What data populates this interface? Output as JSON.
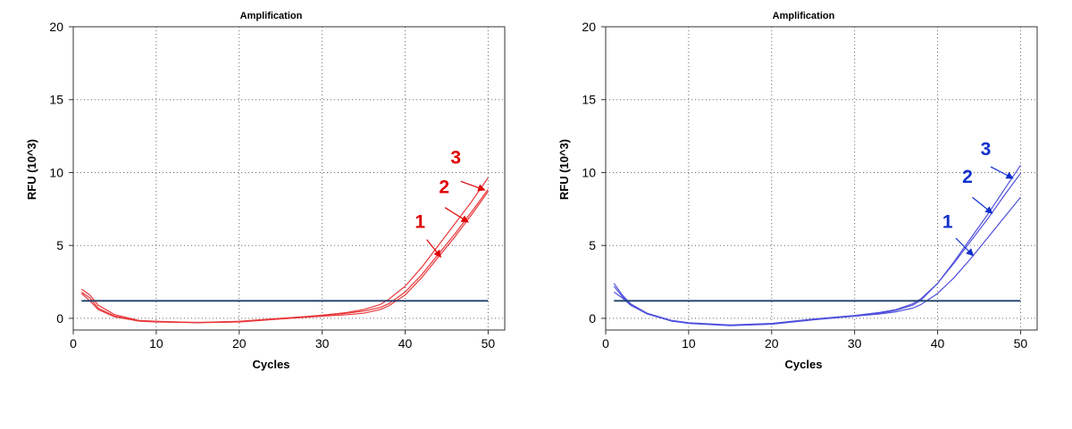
{
  "chart_data": [
    {
      "type": "line",
      "title": "Amplification",
      "xlabel": "Cycles",
      "ylabel": "RFU (10^3)",
      "xlim": [
        0,
        52
      ],
      "ylim": [
        -0.8,
        20
      ],
      "xticks": [
        0,
        10,
        20,
        30,
        40,
        50
      ],
      "yticks": [
        0,
        5,
        10,
        15,
        20
      ],
      "grid": true,
      "threshold": 1.2,
      "threshold_color": "#1f3f6b",
      "line_color": "#e8383b",
      "label_color": "#e00000",
      "series": [
        {
          "x": [
            1,
            2,
            3,
            5,
            8,
            10,
            15,
            20,
            25,
            30,
            33,
            35,
            37,
            38,
            40,
            42,
            44,
            46,
            48,
            50
          ],
          "values": [
            1.7,
            1.2,
            0.6,
            0.1,
            -0.2,
            -0.25,
            -0.3,
            -0.25,
            -0.05,
            0.15,
            0.25,
            0.35,
            0.6,
            0.85,
            1.6,
            2.8,
            4.2,
            5.6,
            7.1,
            8.7
          ]
        },
        {
          "x": [
            1,
            2,
            3,
            5,
            8,
            10,
            15,
            20,
            25,
            30,
            33,
            35,
            37,
            38,
            40,
            42,
            44,
            46,
            48,
            50
          ],
          "values": [
            2.0,
            1.6,
            0.9,
            0.25,
            -0.15,
            -0.2,
            -0.3,
            -0.2,
            0.0,
            0.2,
            0.35,
            0.5,
            0.75,
            1.0,
            1.8,
            3.0,
            4.4,
            5.8,
            7.3,
            8.85
          ]
        },
        {
          "x": [
            1,
            2,
            3,
            5,
            8,
            10,
            15,
            20,
            25,
            30,
            33,
            35,
            37,
            38,
            40,
            42,
            44,
            46,
            48,
            50
          ],
          "values": [
            1.8,
            1.4,
            0.7,
            0.15,
            -0.18,
            -0.22,
            -0.28,
            -0.22,
            -0.02,
            0.22,
            0.4,
            0.6,
            0.95,
            1.3,
            2.2,
            3.5,
            5.0,
            6.5,
            8.0,
            9.65
          ]
        }
      ],
      "annotations": [
        {
          "text": "1",
          "x": 41.8,
          "y": 6.2,
          "arrow_from": [
            42.6,
            5.4
          ],
          "arrow_to": [
            44.3,
            4.2
          ]
        },
        {
          "text": "2",
          "x": 44.7,
          "y": 8.6,
          "arrow_from": [
            44.8,
            7.6
          ],
          "arrow_to": [
            47.6,
            6.6
          ]
        },
        {
          "text": "3",
          "x": 46.1,
          "y": 10.6,
          "arrow_from": [
            46.7,
            9.4
          ],
          "arrow_to": [
            49.6,
            8.8
          ]
        }
      ]
    },
    {
      "type": "line",
      "title": "Amplification",
      "xlabel": "Cycles",
      "ylabel": "RFU (10^3)",
      "xlim": [
        0,
        52
      ],
      "ylim": [
        -0.8,
        20
      ],
      "xticks": [
        0,
        10,
        20,
        30,
        40,
        50
      ],
      "yticks": [
        0,
        5,
        10,
        15,
        20
      ],
      "grid": true,
      "threshold": 1.2,
      "threshold_color": "#1f3f6b",
      "line_color": "#5050dd",
      "label_color": "#1030cc",
      "series": [
        {
          "x": [
            1,
            2,
            3,
            5,
            8,
            10,
            15,
            20,
            25,
            30,
            33,
            35,
            37,
            38,
            40,
            42,
            44,
            46,
            48,
            50
          ],
          "values": [
            1.8,
            1.4,
            0.9,
            0.3,
            -0.2,
            -0.35,
            -0.5,
            -0.4,
            -0.1,
            0.15,
            0.3,
            0.45,
            0.7,
            0.95,
            1.7,
            2.8,
            4.1,
            5.5,
            6.9,
            8.3
          ]
        },
        {
          "x": [
            1,
            2,
            3,
            5,
            8,
            10,
            15,
            20,
            25,
            30,
            33,
            35,
            37,
            38,
            40,
            42,
            44,
            46,
            48,
            50
          ],
          "values": [
            2.4,
            1.6,
            1.0,
            0.35,
            -0.15,
            -0.3,
            -0.45,
            -0.35,
            -0.05,
            0.2,
            0.4,
            0.6,
            1.0,
            1.35,
            2.4,
            3.8,
            5.3,
            6.8,
            8.4,
            9.95
          ]
        },
        {
          "x": [
            1,
            2,
            3,
            5,
            8,
            10,
            15,
            20,
            25,
            30,
            33,
            35,
            37,
            38,
            40,
            42,
            44,
            46,
            48,
            50
          ],
          "values": [
            2.2,
            1.5,
            0.95,
            0.32,
            -0.18,
            -0.32,
            -0.48,
            -0.38,
            -0.08,
            0.18,
            0.35,
            0.55,
            0.9,
            1.25,
            2.4,
            3.9,
            5.5,
            7.1,
            8.8,
            10.5
          ]
        }
      ],
      "annotations": [
        {
          "text": "1",
          "x": 41.2,
          "y": 6.2,
          "arrow_from": [
            42.2,
            5.5
          ],
          "arrow_to": [
            44.3,
            4.3
          ]
        },
        {
          "text": "2",
          "x": 43.6,
          "y": 9.3,
          "arrow_from": [
            44.2,
            8.3
          ],
          "arrow_to": [
            46.6,
            7.2
          ]
        },
        {
          "text": "3",
          "x": 45.8,
          "y": 11.2,
          "arrow_from": [
            46.4,
            10.4
          ],
          "arrow_to": [
            49.1,
            9.6
          ]
        }
      ]
    }
  ]
}
